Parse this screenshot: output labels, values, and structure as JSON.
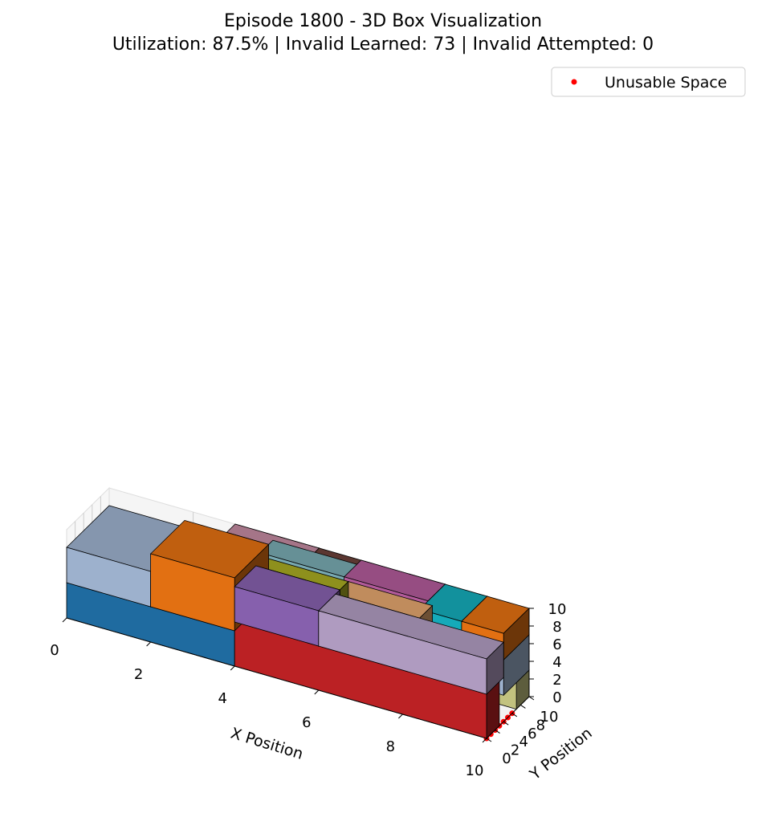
{
  "chart_data": {
    "type": "3d-box",
    "title": "Episode 1800 - 3D Box Visualization",
    "subtitle": "Utilization: 87.5% | Invalid Learned: 73 | Invalid Attempted: 0",
    "xlabel": "X Position",
    "ylabel": "Y Position",
    "zlabel": "",
    "xlim": [
      0,
      10
    ],
    "ylim": [
      0,
      10
    ],
    "zlim": [
      0,
      10
    ],
    "xticks": [
      "0",
      "2",
      "4",
      "6",
      "8",
      "10"
    ],
    "yticks": [
      "0",
      "2",
      "4",
      "6",
      "8",
      "10"
    ],
    "zticks": [
      "0",
      "2",
      "4",
      "6",
      "8",
      "10"
    ],
    "legend": {
      "placement": "top-right",
      "entries": [
        {
          "label": "Unusable Space",
          "color": "#ff0000"
        }
      ]
    },
    "grid": true,
    "boxes": [
      {
        "pos": [
          0,
          0,
          0
        ],
        "size": [
          4,
          10,
          4
        ],
        "color": "#1f6ba0"
      },
      {
        "pos": [
          4,
          0,
          0
        ],
        "size": [
          6,
          3,
          5
        ],
        "color": "#bb2124"
      },
      {
        "pos": [
          6,
          7,
          0
        ],
        "size": [
          4,
          3,
          3
        ],
        "color": "#c2c27f"
      },
      {
        "pos": [
          0,
          0,
          4
        ],
        "size": [
          2,
          10,
          4
        ],
        "color": "#9db1cd"
      },
      {
        "pos": [
          2,
          0,
          4
        ],
        "size": [
          2,
          8,
          6
        ],
        "color": "#e27012"
      },
      {
        "pos": [
          2,
          8,
          4
        ],
        "size": [
          4,
          2,
          4
        ],
        "color": "#c47473"
      },
      {
        "pos": [
          4,
          0,
          5
        ],
        "size": [
          2,
          5,
          4
        ],
        "color": "#8660ad"
      },
      {
        "pos": [
          6,
          0,
          5
        ],
        "size": [
          4,
          4,
          4
        ],
        "color": "#af9bc0"
      },
      {
        "pos": [
          9,
          4,
          3
        ],
        "size": [
          1,
          6,
          4
        ],
        "color": "#9db1cd"
      },
      {
        "pos": [
          9,
          4,
          7
        ],
        "size": [
          1,
          6,
          3
        ],
        "color": "#e27012"
      },
      {
        "pos": [
          8,
          4,
          3
        ],
        "size": [
          1,
          6,
          7
        ],
        "color": "#15aab9"
      },
      {
        "pos": [
          6,
          4,
          5
        ],
        "size": [
          2,
          3,
          4
        ],
        "color": "#e2a56d"
      },
      {
        "pos": [
          4,
          7,
          5
        ],
        "size": [
          4,
          3,
          4
        ],
        "color": "#9b9b9b"
      },
      {
        "pos": [
          4,
          5,
          5
        ],
        "size": [
          2,
          2,
          4
        ],
        "color": "#a7a922"
      },
      {
        "pos": [
          4,
          9,
          5
        ],
        "size": [
          1,
          1,
          5
        ],
        "color": "#c72221"
      },
      {
        "pos": [
          6,
          6,
          8
        ],
        "size": [
          2,
          4,
          2
        ],
        "color": "#b15a99"
      },
      {
        "pos": [
          4,
          6,
          8
        ],
        "size": [
          3,
          3,
          2
        ],
        "color": "#78a9b1"
      },
      {
        "pos": [
          3,
          8,
          8
        ],
        "size": [
          2,
          2,
          2
        ],
        "color": "#c28aa0"
      },
      {
        "pos": [
          5,
          8,
          8
        ],
        "size": [
          3,
          2,
          2
        ],
        "color": "#6b413a"
      },
      {
        "pos": [
          8,
          8,
          8
        ],
        "size": [
          1,
          1,
          2
        ],
        "color": "#c72221"
      }
    ],
    "unusable_points": [
      [
        10,
        0,
        0
      ],
      [
        10,
        1,
        0
      ],
      [
        10,
        2,
        0
      ],
      [
        10,
        3,
        0
      ],
      [
        10,
        4,
        0
      ],
      [
        10,
        5,
        0
      ],
      [
        10,
        6,
        0
      ]
    ]
  }
}
